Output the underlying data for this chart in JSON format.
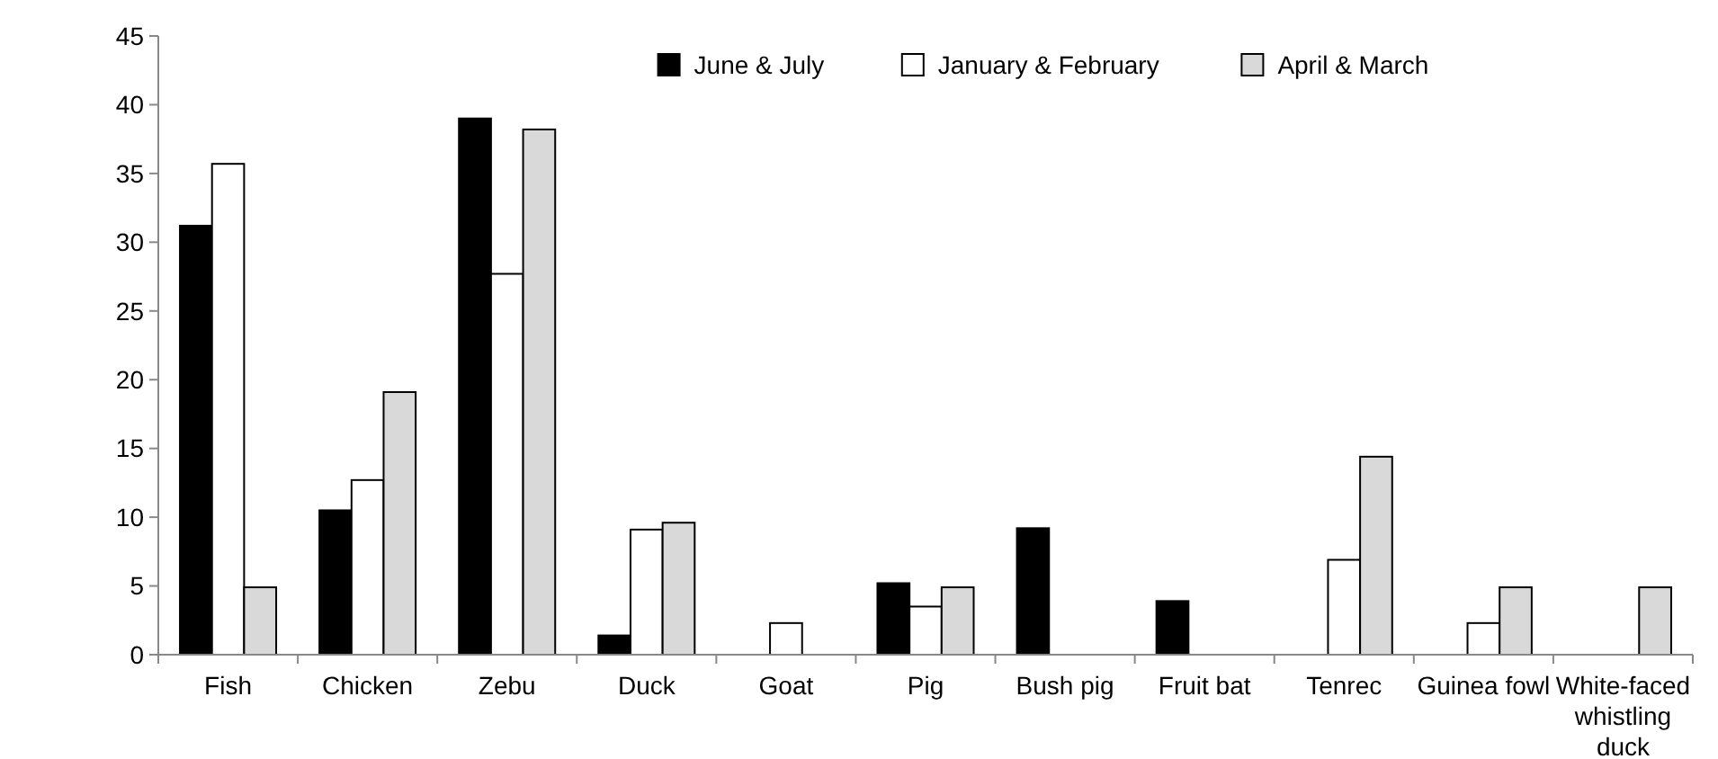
{
  "chart_data": {
    "type": "bar",
    "categories": [
      "Fish",
      "Chicken",
      "Zebu",
      "Duck",
      "Goat",
      "Pig",
      "Bush pig",
      "Fruit bat",
      "Tenrec",
      "Guinea fowl",
      "White-faced whistling duck"
    ],
    "series": [
      {
        "name": "June & July",
        "color": "#000000",
        "values": [
          31.2,
          10.5,
          39.0,
          1.4,
          null,
          5.2,
          9.2,
          3.9,
          null,
          null,
          null
        ]
      },
      {
        "name": "January & February",
        "color": "#ffffff",
        "values": [
          35.7,
          12.7,
          27.7,
          9.1,
          2.3,
          3.5,
          null,
          null,
          6.9,
          2.3,
          null
        ]
      },
      {
        "name": "April & March",
        "color": "#d9d9d9",
        "values": [
          4.9,
          19.1,
          38.2,
          9.6,
          null,
          4.9,
          null,
          null,
          14.4,
          4.9,
          4.9
        ]
      }
    ],
    "ylim": [
      0,
      45
    ],
    "yticks": [
      0,
      5,
      10,
      15,
      20,
      25,
      30,
      35,
      40,
      45
    ],
    "grid": false,
    "legend": "top right"
  }
}
